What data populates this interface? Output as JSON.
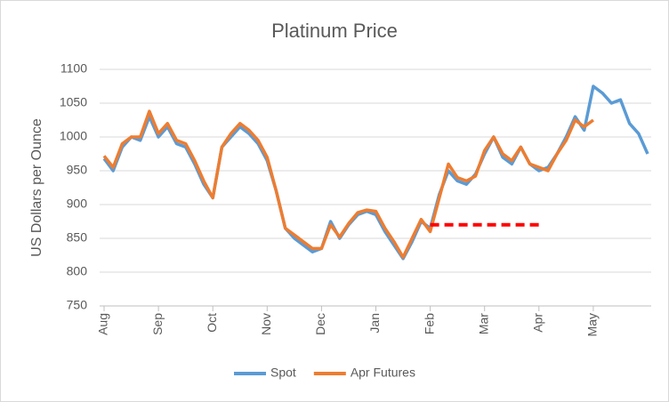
{
  "chart_data": {
    "type": "line",
    "title": "Platinum Price",
    "y_label": "US Dollars per Ounce",
    "categories": [
      "Aug",
      null,
      null,
      null,
      null,
      null,
      "Sep",
      null,
      null,
      null,
      null,
      null,
      "Oct",
      null,
      null,
      null,
      null,
      null,
      "Nov",
      null,
      null,
      null,
      null,
      null,
      "Dec",
      null,
      null,
      null,
      null,
      null,
      "Jan",
      null,
      null,
      null,
      null,
      null,
      "Feb",
      null,
      null,
      null,
      null,
      null,
      "Mar",
      null,
      null,
      null,
      null,
      null,
      "Apr",
      null,
      null,
      null,
      null,
      null,
      "May",
      null,
      null,
      null,
      null,
      null,
      null
    ],
    "series": [
      {
        "name": "Spot",
        "color": "#5b9bd5",
        "values": [
          968,
          950,
          985,
          1000,
          995,
          1030,
          1000,
          1015,
          990,
          985,
          960,
          930,
          910,
          985,
          1000,
          1015,
          1005,
          990,
          965,
          920,
          865,
          850,
          840,
          830,
          835,
          875,
          850,
          870,
          885,
          890,
          885,
          860,
          840,
          820,
          845,
          875,
          865,
          915,
          950,
          935,
          930,
          945,
          975,
          1000,
          970,
          960,
          985,
          960,
          950,
          955,
          975,
          1000,
          1030,
          1010,
          1075,
          1065,
          1050,
          1055,
          1020,
          1005,
          975
        ]
      },
      {
        "name": "Apr Futures",
        "color": "#ed7d31",
        "values": [
          972,
          955,
          990,
          1000,
          1000,
          1038,
          1005,
          1020,
          995,
          990,
          965,
          935,
          910,
          985,
          1005,
          1020,
          1010,
          995,
          970,
          920,
          865,
          855,
          845,
          835,
          835,
          870,
          852,
          872,
          888,
          892,
          890,
          865,
          845,
          822,
          850,
          878,
          860,
          910,
          960,
          940,
          935,
          942,
          980,
          1000,
          975,
          965,
          985,
          960,
          955,
          950,
          975,
          995,
          1025,
          1015,
          1025,
          null,
          null,
          null,
          null,
          null,
          null
        ]
      }
    ],
    "reference_line": {
      "value": 870,
      "color": "#ff0000",
      "x_range": [
        "Feb",
        "Apr"
      ]
    },
    "ylim": [
      750,
      1100
    ],
    "yticks": [
      750,
      800,
      850,
      900,
      950,
      1000,
      1050,
      1100
    ],
    "grid": true,
    "legend": "bottom"
  }
}
